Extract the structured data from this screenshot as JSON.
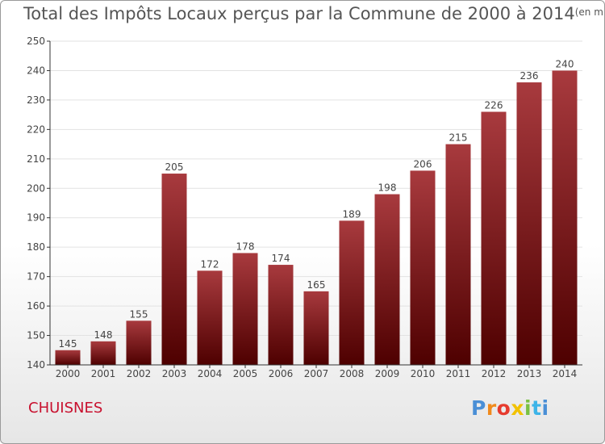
{
  "title": "Total des Impôts Locaux perçus par la Commune de 2000 à 2014",
  "unit_note": "(en milliers d'€)",
  "commune": "CHUISNES",
  "brand": {
    "text": "Proxiti",
    "colors": [
      "#4a8fd6",
      "#f08a1c",
      "#e63b2e",
      "#f2c200",
      "#7ac143",
      "#3db4e8"
    ]
  },
  "colors": {
    "bar_top": "#a83a3e",
    "bar_bottom": "#4e0000",
    "grid": "#e2e2e2",
    "axis": "#333333",
    "commune_text": "#c8102e"
  },
  "chart_data": {
    "type": "bar",
    "title": "Total des Impôts Locaux perçus par la Commune de 2000 à 2014",
    "xlabel": "",
    "ylabel": "",
    "categories": [
      "2000",
      "2001",
      "2002",
      "2003",
      "2004",
      "2005",
      "2006",
      "2007",
      "2008",
      "2009",
      "2010",
      "2011",
      "2012",
      "2013",
      "2014"
    ],
    "values": [
      145,
      148,
      155,
      205,
      172,
      178,
      174,
      165,
      189,
      198,
      206,
      215,
      226,
      236,
      240
    ],
    "ylim": [
      140,
      250
    ],
    "yticks": [
      140,
      150,
      160,
      170,
      180,
      190,
      200,
      210,
      220,
      230,
      240,
      250
    ],
    "grid": true,
    "data_labels": true
  }
}
